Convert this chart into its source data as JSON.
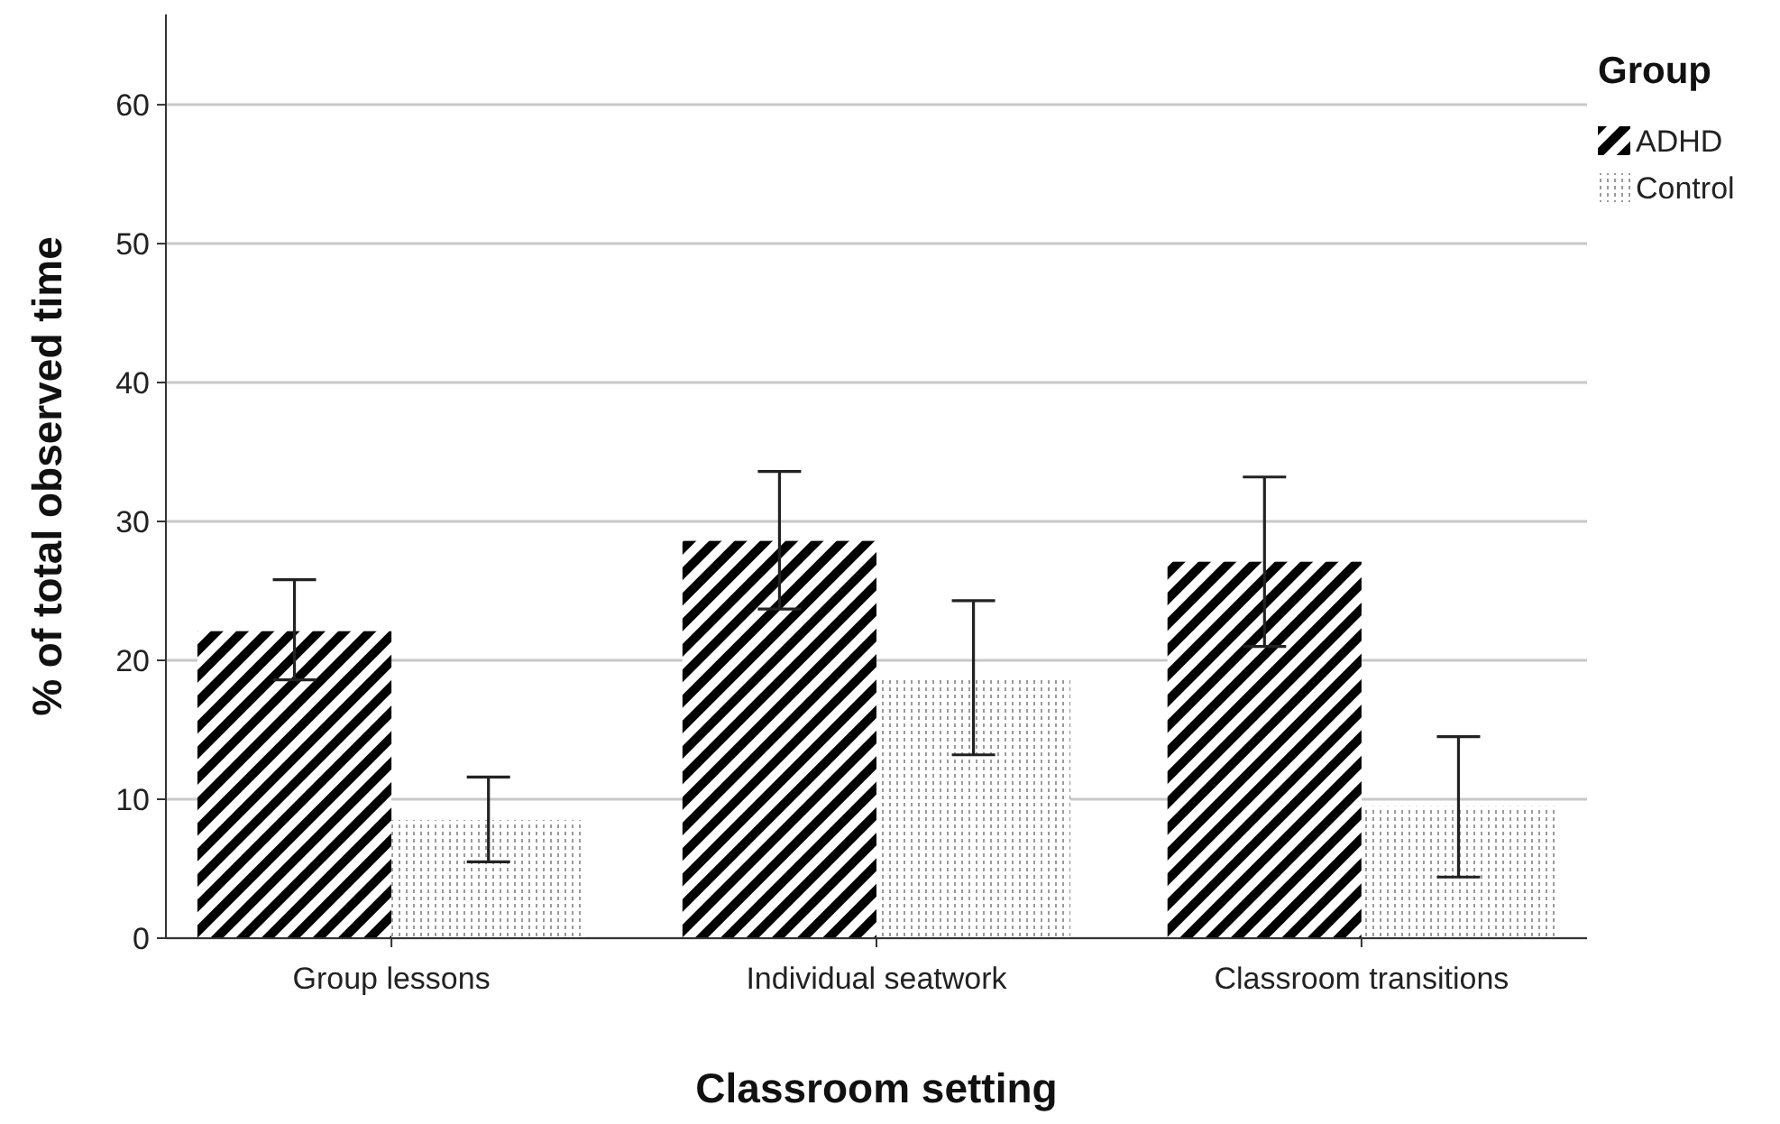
{
  "chart_data": {
    "type": "bar",
    "xlabel": "Classroom setting",
    "ylabel": "% of total observed time",
    "legend_title": "Group",
    "categories": [
      "Group lessons",
      "Individual seatwork",
      "Classroom transitions"
    ],
    "series": [
      {
        "name": "ADHD",
        "color": "#000000",
        "values": [
          22.1,
          28.6,
          27.1
        ],
        "errors": [
          [
            18.6,
            25.8
          ],
          [
            23.7,
            33.6
          ],
          [
            21.0,
            33.2
          ]
        ]
      },
      {
        "name": "Control",
        "color": "#9a9a9a",
        "values": [
          8.5,
          18.7,
          9.5
        ],
        "errors": [
          [
            5.5,
            11.6
          ],
          [
            13.2,
            24.3
          ],
          [
            4.4,
            14.5
          ]
        ]
      }
    ],
    "ylim": [
      0,
      66.5
    ],
    "yticks": [
      0,
      10,
      20,
      30,
      40,
      50,
      60
    ],
    "grid": "y",
    "legend": "top right"
  }
}
